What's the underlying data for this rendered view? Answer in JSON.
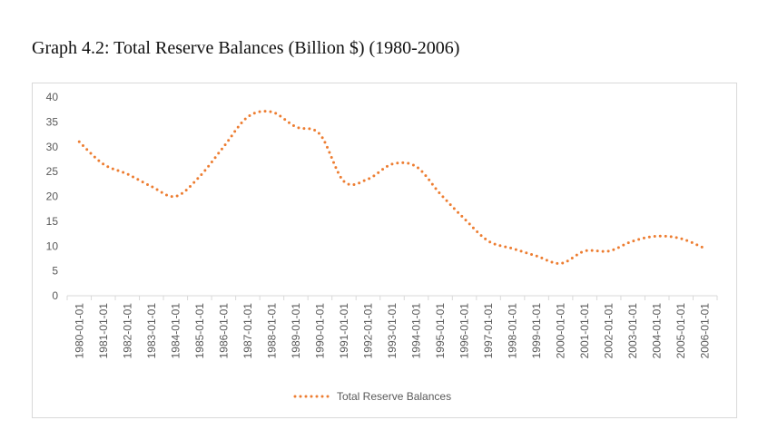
{
  "page": {
    "title": "Graph 4.2: Total Reserve Balances (Billion $) (1980-2006)"
  },
  "chart_data": {
    "type": "line",
    "title": "Graph 4.2: Total Reserve Balances (Billion $) (1980-2006)",
    "xlabel": "",
    "ylabel": "",
    "ylim": [
      0,
      40
    ],
    "yticks": [
      0,
      5,
      10,
      15,
      20,
      25,
      30,
      35,
      40
    ],
    "grid": false,
    "legend_position": "bottom",
    "categories": [
      "1980-01-01",
      "1981-01-01",
      "1982-01-01",
      "1983-01-01",
      "1984-01-01",
      "1985-01-01",
      "1986-01-01",
      "1987-01-01",
      "1988-01-01",
      "1989-01-01",
      "1990-01-01",
      "1991-01-01",
      "1992-01-01",
      "1993-01-01",
      "1994-01-01",
      "1995-01-01",
      "1996-01-01",
      "1997-01-01",
      "1998-01-01",
      "1999-01-01",
      "2000-01-01",
      "2001-01-01",
      "2002-01-01",
      "2003-01-01",
      "2004-01-01",
      "2005-01-01",
      "2006-01-01"
    ],
    "series": [
      {
        "name": "Total Reserve Balances",
        "color": "#ED7D31",
        "line_style": "dotted",
        "values": [
          31,
          26.5,
          24.5,
          22,
          20,
          24,
          30,
          36,
          37,
          34,
          32.5,
          23,
          23.5,
          26.5,
          26,
          20.5,
          15.5,
          11,
          9.5,
          8,
          6.5,
          9,
          9,
          11,
          12,
          11.5,
          9.5
        ]
      }
    ],
    "axis_color": "#d9d9d9",
    "tick_color": "#595959"
  }
}
